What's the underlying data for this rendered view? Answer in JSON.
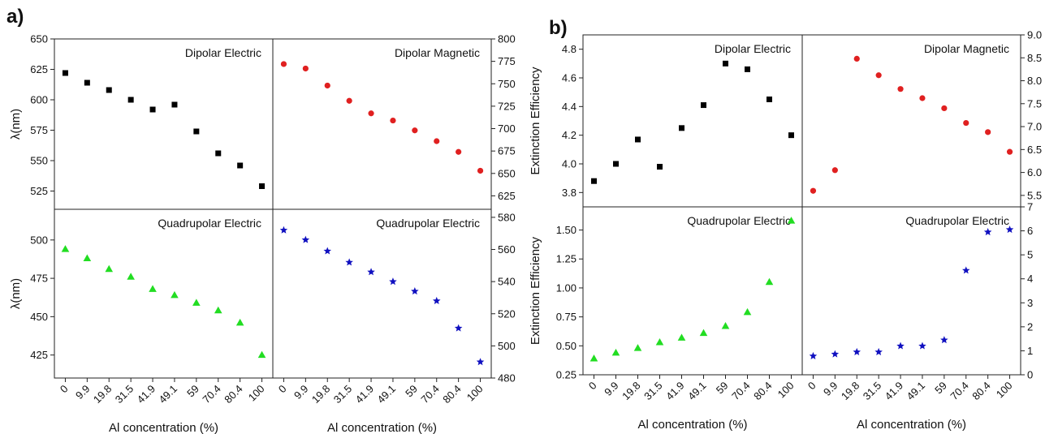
{
  "figure": {
    "panel_labels": [
      "a)",
      "b)"
    ]
  },
  "chart_data": [
    {
      "id": "a-top",
      "type": "scatter",
      "x_categories": [
        "0",
        "9.9",
        "19.8",
        "31.5",
        "41.9",
        "49.1",
        "59",
        "70.4",
        "80.4",
        "100"
      ],
      "ylabel": "λ(nm)",
      "left": {
        "label": "Dipolar Electric",
        "color": "#000000",
        "marker": "square",
        "ylim": [
          510,
          650
        ],
        "yticks": [
          525,
          550,
          575,
          600,
          625,
          650
        ],
        "values": [
          622,
          614,
          608,
          600,
          592,
          596,
          574,
          556,
          546,
          529
        ]
      },
      "right": {
        "label": "Dipolar Magnetic",
        "color": "#e02020",
        "marker": "circle",
        "ylim": [
          610,
          800
        ],
        "yticks": [
          625,
          650,
          675,
          700,
          725,
          750,
          775,
          800
        ],
        "values": [
          772,
          767,
          748,
          731,
          717,
          709,
          698,
          686,
          674,
          653
        ]
      }
    },
    {
      "id": "a-bottom",
      "type": "scatter",
      "x_categories": [
        "0",
        "9.9",
        "19.8",
        "31.5",
        "41.9",
        "49.1",
        "59",
        "70.4",
        "80.4",
        "100"
      ],
      "xlabel": "Al concentration (%)",
      "ylabel": "λ(nm)",
      "left": {
        "label": "Quadrupolar Electric",
        "color": "#22dd22",
        "marker": "triangle",
        "ylim": [
          410,
          520
        ],
        "yticks": [
          425,
          450,
          475,
          500
        ],
        "values": [
          494,
          488,
          481,
          476,
          468,
          464,
          459,
          454,
          446,
          425
        ]
      },
      "right": {
        "label": "Quadrupolar Electric",
        "color": "#1010c0",
        "marker": "star",
        "ylim": [
          480,
          585
        ],
        "yticks": [
          480,
          500,
          520,
          540,
          560,
          580
        ],
        "values": [
          572,
          566,
          559,
          552,
          546,
          540,
          534,
          528,
          511,
          490
        ]
      }
    },
    {
      "id": "b-top",
      "type": "scatter",
      "x_categories": [
        "0",
        "9.9",
        "19.8",
        "31.5",
        "41.9",
        "49.1",
        "59",
        "70.4",
        "80.4",
        "100"
      ],
      "ylabel": "Extinction Efficiency",
      "left": {
        "label": "Dipolar Electric",
        "color": "#000000",
        "marker": "square",
        "ylim": [
          3.7,
          4.9
        ],
        "yticks": [
          3.8,
          4.0,
          4.2,
          4.4,
          4.6,
          4.8
        ],
        "tick_decimals": 1,
        "values": [
          3.88,
          4.0,
          4.17,
          3.98,
          4.25,
          4.41,
          4.7,
          4.66,
          4.45,
          4.2
        ]
      },
      "right": {
        "label": "Dipolar Magnetic",
        "color": "#e02020",
        "marker": "circle",
        "ylim": [
          5.25,
          9.0
        ],
        "yticks": [
          5.5,
          6.0,
          6.5,
          7.0,
          7.5,
          8.0,
          8.5,
          9.0
        ],
        "tick_decimals": 1,
        "values": [
          5.6,
          6.05,
          8.48,
          8.12,
          7.82,
          7.62,
          7.4,
          7.08,
          6.88,
          6.45
        ]
      }
    },
    {
      "id": "b-bottom",
      "type": "scatter",
      "x_categories": [
        "0",
        "9.9",
        "19.8",
        "31.5",
        "41.9",
        "49.1",
        "59",
        "70.4",
        "80.4",
        "100"
      ],
      "xlabel": "Al concentration (%)",
      "ylabel": "Extinction Efficiency",
      "left": {
        "label": "Quadrupolar Electric",
        "color": "#22dd22",
        "marker": "triangle",
        "ylim": [
          0.25,
          1.7
        ],
        "yticks": [
          0.25,
          0.5,
          0.75,
          1.0,
          1.25,
          1.5
        ],
        "tick_decimals": 2,
        "values": [
          0.39,
          0.44,
          0.48,
          0.53,
          0.57,
          0.61,
          0.67,
          0.79,
          1.05,
          1.58
        ]
      },
      "right": {
        "label": "Quadrupolar Electric",
        "color": "#1010c0",
        "marker": "star",
        "ylim": [
          0,
          7
        ],
        "yticks": [
          0,
          1,
          2,
          3,
          4,
          5,
          6,
          7
        ],
        "tick_decimals": 0,
        "values": [
          0.78,
          0.86,
          0.95,
          0.95,
          1.2,
          1.2,
          1.45,
          4.35,
          5.95,
          6.05
        ]
      }
    }
  ]
}
